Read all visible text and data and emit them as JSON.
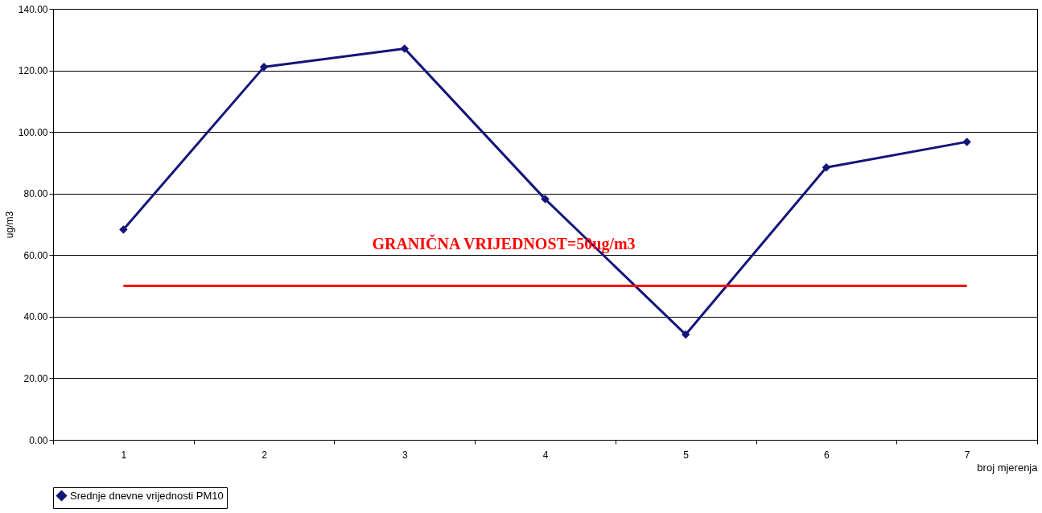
{
  "chart_data": {
    "type": "line",
    "categories": [
      "1",
      "2",
      "3",
      "4",
      "5",
      "6",
      "7"
    ],
    "series": [
      {
        "name": "Srednje dnevne vrijednosti PM10",
        "color": "#14147a",
        "values": [
          68.3,
          121.1,
          127.1,
          78.2,
          34.2,
          88.5,
          96.8
        ]
      }
    ],
    "ylabel": "ug/m3",
    "xlabel": "broj mjerenja",
    "ylim": [
      0,
      140
    ],
    "yticks": [
      {
        "value": 0,
        "label": "0.00"
      },
      {
        "value": 20,
        "label": "20.00"
      },
      {
        "value": 40,
        "label": "40.00"
      },
      {
        "value": 60,
        "label": "60.00"
      },
      {
        "value": 80,
        "label": "80.00"
      },
      {
        "value": 100,
        "label": "100.00"
      },
      {
        "value": 120,
        "label": "120.00"
      },
      {
        "value": 140,
        "label": "140.00"
      }
    ],
    "ref_lines": [
      {
        "axis": "y",
        "value": 50,
        "label": "GRANIČNA VRIJEDNOST=50ug/m3",
        "color": "#ff0000"
      }
    ],
    "grid": "y",
    "legend": "bottom",
    "marker": "diamond",
    "line_style": "solid"
  }
}
